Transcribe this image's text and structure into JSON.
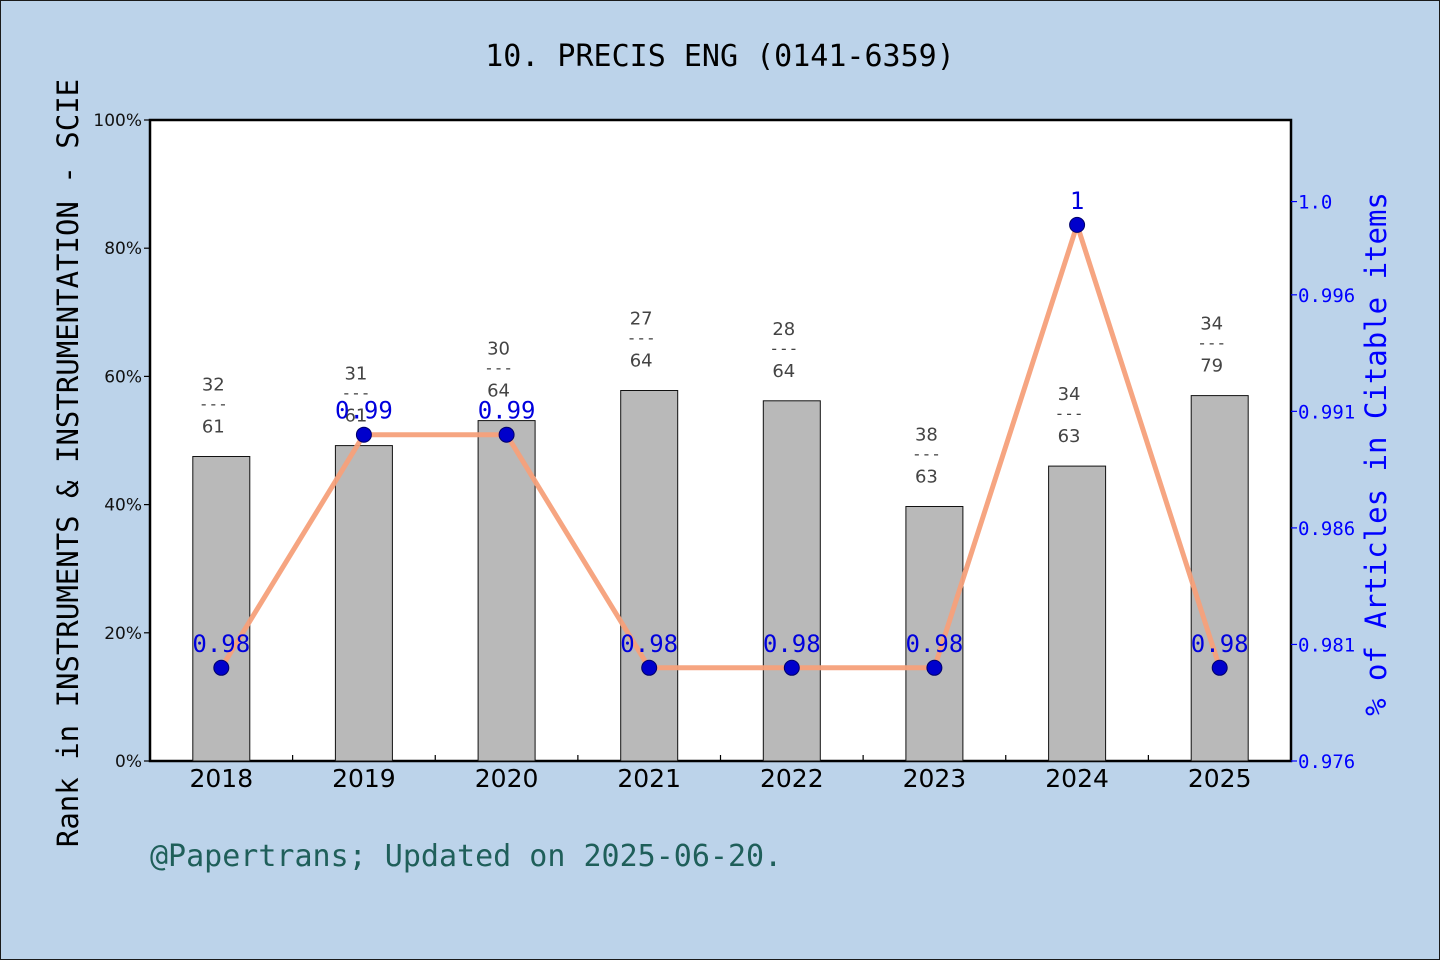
{
  "chart_data": {
    "type": "bar",
    "title": "10. PRECIS ENG (0141-6359)",
    "ylabel": "Rank in INSTRUMENTS & INSTRUMENTATION - SCIE",
    "y2label": "% of Articles in Citable items",
    "footer": "@Papertrans; Updated on 2025-06-20.",
    "categories": [
      "2018",
      "2019",
      "2020",
      "2021",
      "2022",
      "2023",
      "2024",
      "2025"
    ],
    "ylim": [
      0,
      100
    ],
    "yticks": [
      0,
      20,
      40,
      60,
      80,
      100
    ],
    "ytick_labels": [
      "0%",
      "20%",
      "40%",
      "60%",
      "80%",
      "100%"
    ],
    "y2lim": [
      0.976,
      1.0035
    ],
    "y2ticks": [
      0.976,
      0.981,
      0.986,
      0.991,
      0.996,
      1.0
    ],
    "y2tick_labels": [
      "0.976",
      "0.981",
      "0.986",
      "0.991",
      "0.996",
      "1.0"
    ],
    "bars": {
      "values": [
        47.5,
        49.2,
        53.1,
        57.8,
        56.2,
        39.7,
        46.0,
        57.0
      ],
      "ranks": [
        "32",
        "31",
        "30",
        "27",
        "28",
        "38",
        "34",
        "34"
      ],
      "totals": [
        "61",
        "61",
        "64",
        "64",
        "64",
        "63",
        "63",
        "79"
      ],
      "separator": "---",
      "color": "#b9b9b9"
    },
    "line": {
      "values": [
        0.98,
        0.99,
        0.99,
        0.98,
        0.98,
        0.98,
        0.999,
        0.98
      ],
      "labels": [
        "0.98",
        "0.99",
        "0.99",
        "0.98",
        "0.98",
        "0.98",
        "1",
        "0.98"
      ],
      "line_color": "#f5a07a",
      "marker_color": "#0000cc",
      "label_color": "#0000dd"
    },
    "grid": false
  }
}
